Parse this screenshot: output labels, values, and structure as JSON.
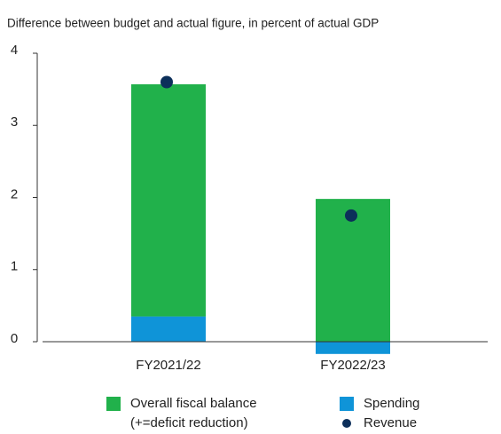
{
  "chart_data": {
    "type": "stacked_bar_dot",
    "title": "Difference between budget and actual figure, in percent of actual GDP",
    "categories": [
      "FY2021/22",
      "FY2022/23"
    ],
    "series": [
      {
        "name": "Spending",
        "color": "#0f94d8",
        "values": [
          0.35,
          -0.17
        ],
        "kind": "bar"
      },
      {
        "name": "Overall fiscal balance\n(+=deficit reduction)",
        "color": "#21b14b",
        "values": [
          3.22,
          1.98
        ],
        "kind": "bar"
      },
      {
        "name": "Revenue",
        "color": "#0c2f5a",
        "values": [
          3.6,
          1.75
        ],
        "kind": "dot"
      }
    ],
    "ylim": [
      -0.2,
      4
    ],
    "yticks": [
      0,
      1,
      2,
      3,
      4
    ],
    "grid": false
  }
}
